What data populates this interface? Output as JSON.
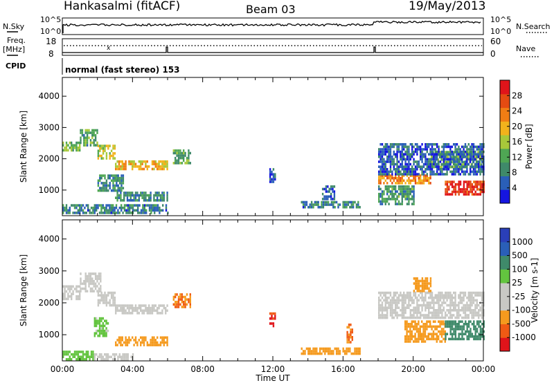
{
  "header": {
    "station": "Hankasalmi (fitACF)",
    "beam": "Beam 03",
    "date": "19/May/2013"
  },
  "strips": {
    "nsky_label": "N.Sky",
    "nsky_top": "10^5",
    "nsky_bottom": "10^0",
    "nsearch_label": "N.Search",
    "nsearch_top": "10^5",
    "nsearch_bottom": "10^0",
    "freq_label_1": "Freq.",
    "freq_label_2": "[MHz]",
    "freq_top": "18",
    "freq_bottom": "8",
    "nave_label": "Nave",
    "nave_top": "60",
    "nave_bottom": "0",
    "cpid_label": "CPID",
    "cpid_text": "normal (fast stereo) 153"
  },
  "colors": {
    "power_scale": [
      "#1515e0",
      "#2a5fb8",
      "#3f8a6a",
      "#4fa654",
      "#a8c83a",
      "#f2b21c",
      "#f07d14",
      "#e44b12",
      "#e0141a"
    ],
    "velocity_scale": [
      "#e0141a",
      "#f05a14",
      "#f59a1e",
      "#c8c8c4",
      "#c8c8c4",
      "#63c43f",
      "#3f8a6a",
      "#2a5fb8",
      "#2a3fb8"
    ]
  },
  "chart_data": [
    {
      "type": "heatmap",
      "name": "power",
      "xlabel": "",
      "ylabel": "Slant Range [km]",
      "x_ticks": [],
      "y_ticks": [
        "1000",
        "2000",
        "3000",
        "4000"
      ],
      "xlim": [
        0,
        24
      ],
      "ylim": [
        180,
        4600
      ],
      "colorbar_label": "Power [dB]",
      "colorbar_ticks": [
        "4",
        "8",
        "12",
        "16",
        "20",
        "24",
        "28"
      ],
      "regions": [
        {
          "t0": 0.0,
          "t1": 1.0,
          "r0": 2250,
          "r1": 2550,
          "v": 14
        },
        {
          "t0": 1.0,
          "t1": 2.0,
          "r0": 2450,
          "r1": 2950,
          "v": 12
        },
        {
          "t0": 2.0,
          "t1": 3.0,
          "r0": 2000,
          "r1": 2450,
          "v": 17
        },
        {
          "t0": 3.0,
          "t1": 6.0,
          "r0": 1650,
          "r1": 1950,
          "v": 20
        },
        {
          "t0": 2.0,
          "t1": 3.5,
          "r0": 950,
          "r1": 1500,
          "v": 10
        },
        {
          "t0": 3.0,
          "t1": 6.0,
          "r0": 700,
          "r1": 950,
          "v": 10
        },
        {
          "t0": 0.0,
          "t1": 6.0,
          "r0": 250,
          "r1": 550,
          "v": 9
        },
        {
          "t0": 6.3,
          "t1": 7.3,
          "r0": 1850,
          "r1": 2300,
          "v": 13
        },
        {
          "t0": 11.8,
          "t1": 12.1,
          "r0": 1300,
          "r1": 1700,
          "v": 6
        },
        {
          "t0": 13.6,
          "t1": 17.0,
          "r0": 450,
          "r1": 650,
          "v": 9
        },
        {
          "t0": 14.8,
          "t1": 15.5,
          "r0": 750,
          "r1": 1150,
          "v": 7
        },
        {
          "t0": 18.0,
          "t1": 21.0,
          "r0": 1200,
          "r1": 1500,
          "v": 22
        },
        {
          "t0": 21.0,
          "t1": 24.0,
          "r0": 1700,
          "r1": 2250,
          "v": 14
        },
        {
          "t0": 18.0,
          "t1": 24.0,
          "r0": 1500,
          "r1": 2500,
          "v": 7
        },
        {
          "t0": 21.8,
          "t1": 24.0,
          "r0": 900,
          "r1": 1300,
          "v": 28
        },
        {
          "t0": 18.0,
          "t1": 20.0,
          "r0": 550,
          "r1": 1150,
          "v": 11
        }
      ]
    },
    {
      "type": "heatmap",
      "name": "velocity",
      "xlabel": "Time UT",
      "ylabel": "Slant Range [km]",
      "x_ticks": [
        "00:00",
        "04:00",
        "08:00",
        "12:00",
        "16:00",
        "20:00",
        "00:00"
      ],
      "y_ticks": [
        "1000",
        "2000",
        "3000",
        "4000"
      ],
      "xlim": [
        0,
        24
      ],
      "ylim": [
        180,
        4600
      ],
      "colorbar_label": "Velocity [m s-1]",
      "colorbar_ticks": [
        "-1000",
        "-500",
        "-100",
        "-25",
        "25",
        "100",
        "500",
        "1000"
      ],
      "regions": [
        {
          "t0": 0.0,
          "t1": 1.0,
          "r0": 2150,
          "r1": 2550,
          "v": 0
        },
        {
          "t0": 1.0,
          "t1": 2.2,
          "r0": 2400,
          "r1": 2950,
          "v": 0
        },
        {
          "t0": 2.0,
          "t1": 3.0,
          "r0": 1900,
          "r1": 2350,
          "v": 0
        },
        {
          "t0": 3.0,
          "t1": 6.0,
          "r0": 1650,
          "r1": 1950,
          "v": 0
        },
        {
          "t0": 1.8,
          "t1": 2.6,
          "r0": 1000,
          "r1": 1550,
          "v": 80
        },
        {
          "t0": 3.0,
          "t1": 6.0,
          "r0": 650,
          "r1": 950,
          "v": -150
        },
        {
          "t0": 0.0,
          "t1": 1.8,
          "r0": 260,
          "r1": 500,
          "v": 120
        },
        {
          "t0": 1.8,
          "t1": 4.0,
          "r0": 260,
          "r1": 420,
          "v": 0
        },
        {
          "t0": 6.3,
          "t1": 7.3,
          "r0": 1850,
          "r1": 2300,
          "v": -300
        },
        {
          "t0": 11.8,
          "t1": 12.1,
          "r0": 1300,
          "r1": 1700,
          "v": -700
        },
        {
          "t0": 13.6,
          "t1": 17.0,
          "r0": 420,
          "r1": 600,
          "v": -200
        },
        {
          "t0": 16.2,
          "t1": 16.5,
          "r0": 750,
          "r1": 1350,
          "v": -300
        },
        {
          "t0": 18.0,
          "t1": 24.0,
          "r0": 1500,
          "r1": 2350,
          "v": 0
        },
        {
          "t0": 19.5,
          "t1": 21.8,
          "r0": 750,
          "r1": 1450,
          "v": -200
        },
        {
          "t0": 21.8,
          "t1": 24.0,
          "r0": 850,
          "r1": 1450,
          "v": 350
        },
        {
          "t0": 20.0,
          "t1": 21.0,
          "r0": 2400,
          "r1": 2800,
          "v": -200
        }
      ]
    }
  ]
}
